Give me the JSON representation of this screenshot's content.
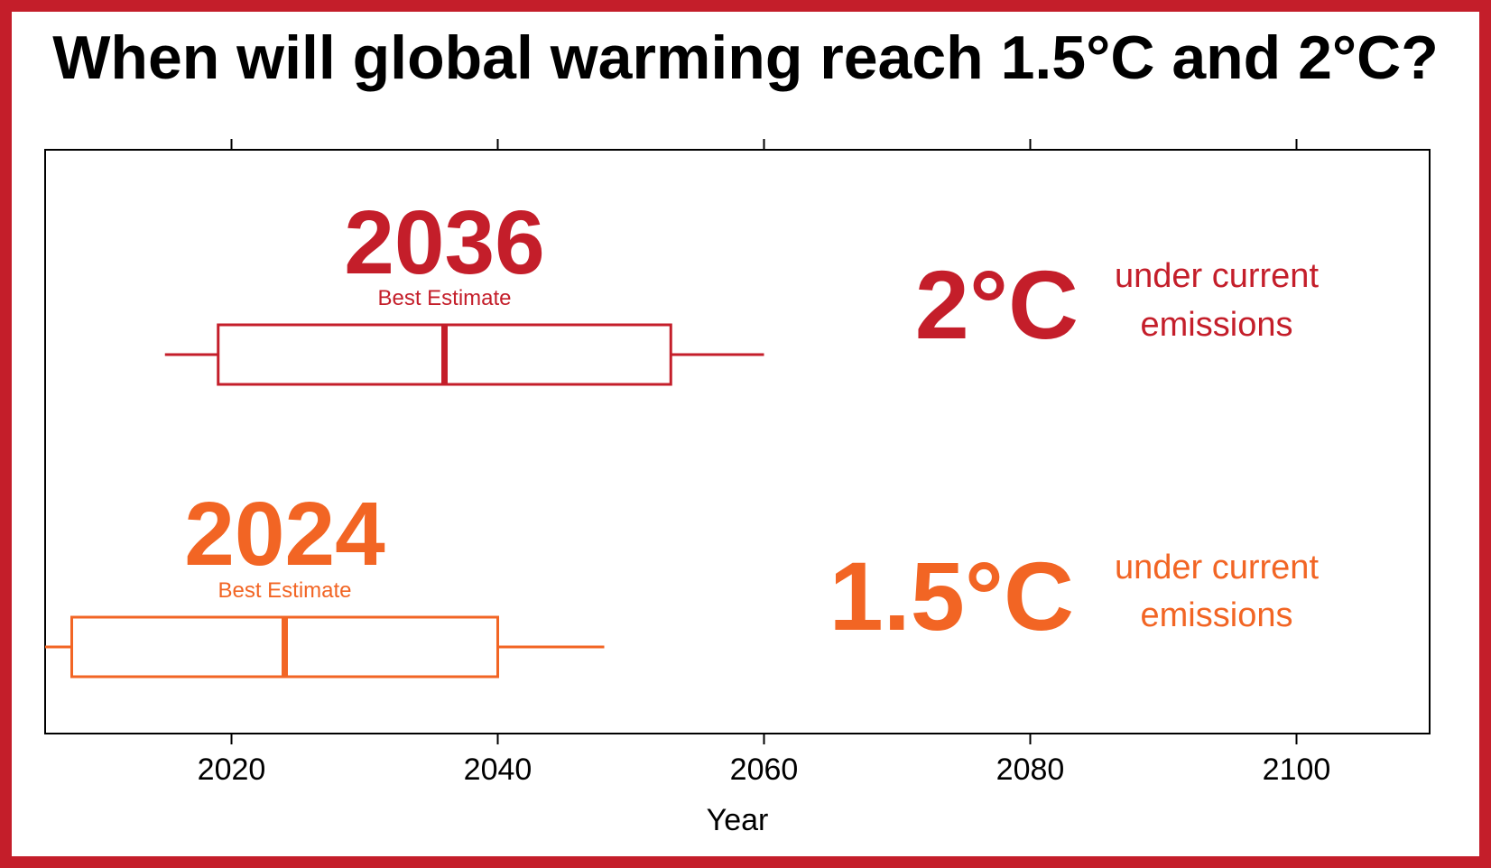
{
  "title": "When will global warming reach 1.5°C and 2°C?",
  "colors": {
    "frame": "#c41e2a",
    "two_deg": "#c41e2a",
    "one_five_deg": "#f26524",
    "axis": "#000000"
  },
  "chart_data": {
    "type": "boxplot",
    "title": "When will global warming reach 1.5°C and 2°C?",
    "xlabel": "Year",
    "xlim": [
      2006,
      2110
    ],
    "xticks": [
      2020,
      2040,
      2060,
      2080,
      2100
    ],
    "grid": false,
    "series": [
      {
        "name": "2°C",
        "label_big": "2°C",
        "label_small_1": "under current",
        "label_small_2": "emissions",
        "best_estimate": 2036,
        "best_estimate_text": "2036",
        "best_estimate_label": "Best Estimate",
        "whisker_low": 2015,
        "q1": 2019,
        "median": 2036,
        "q3": 2053,
        "whisker_high": 2060,
        "color": "#c41e2a"
      },
      {
        "name": "1.5°C",
        "label_big": "1.5°C",
        "label_small_1": "under current",
        "label_small_2": "emissions",
        "best_estimate": 2024,
        "best_estimate_text": "2024",
        "best_estimate_label": "Best Estimate",
        "whisker_low": 2006,
        "q1": 2008,
        "median": 2024,
        "q3": 2040,
        "whisker_high": 2048,
        "color": "#f26524"
      }
    ]
  }
}
